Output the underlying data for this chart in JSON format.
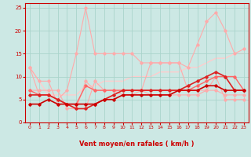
{
  "bg_color": "#cce8e4",
  "grid_color": "#aad4cc",
  "xlim": [
    -0.5,
    23.5
  ],
  "ylim": [
    0,
    26
  ],
  "yticks": [
    0,
    5,
    10,
    15,
    20,
    25
  ],
  "xticks": [
    0,
    1,
    2,
    3,
    4,
    5,
    6,
    7,
    8,
    9,
    10,
    11,
    12,
    13,
    14,
    15,
    16,
    17,
    18,
    19,
    20,
    21,
    22,
    23
  ],
  "xlabel": "Vent moyen/en rafales ( km/h )",
  "lines": [
    {
      "x": [
        0,
        1,
        2,
        3,
        4,
        5,
        6,
        7,
        8,
        9,
        10,
        11,
        12,
        13,
        14,
        15,
        16,
        17,
        18,
        19,
        20,
        21,
        22,
        23
      ],
      "y": [
        12,
        9,
        9,
        4,
        4,
        3,
        3,
        9,
        7,
        7,
        7,
        7,
        7,
        13,
        13,
        13,
        13,
        7,
        7,
        7,
        10,
        5,
        5,
        5
      ],
      "color": "#ffaaaa",
      "lw": 0.8,
      "marker": "D",
      "ms": 1.8
    },
    {
      "x": [
        0,
        1,
        2,
        3,
        4,
        5,
        6,
        7,
        8,
        9,
        10,
        11,
        12,
        13,
        14,
        15,
        16,
        17,
        18,
        19,
        20,
        21,
        22,
        23
      ],
      "y": [
        7,
        7,
        7,
        7,
        3,
        3,
        9,
        7,
        7,
        7,
        6,
        6,
        7,
        6,
        6,
        6,
        6,
        6,
        6,
        7,
        7,
        6,
        6,
        6
      ],
      "color": "#ffaaaa",
      "lw": 0.8,
      "marker": "D",
      "ms": 1.8
    },
    {
      "x": [
        0,
        2,
        5,
        6,
        7,
        8,
        9,
        10,
        11,
        12,
        13,
        14,
        15,
        16,
        17,
        18,
        19,
        20,
        21,
        22,
        23
      ],
      "y": [
        12,
        6,
        6,
        8,
        8,
        9,
        9,
        9,
        10,
        10,
        10,
        11,
        11,
        11,
        12,
        12,
        13,
        14,
        14,
        15,
        15
      ],
      "color": "#ffcccc",
      "lw": 1.0,
      "marker": null,
      "ms": 0
    },
    {
      "x": [
        0,
        1,
        2,
        3,
        4,
        5,
        6,
        7,
        8,
        9,
        10,
        11,
        12,
        13,
        14,
        15,
        16,
        17,
        18,
        19,
        20,
        21,
        22,
        23
      ],
      "y": [
        12,
        6,
        6,
        5,
        7,
        15,
        25,
        15,
        15,
        15,
        15,
        15,
        13,
        13,
        13,
        13,
        13,
        12,
        17,
        22,
        24,
        20,
        15,
        16
      ],
      "color": "#ffaaaa",
      "lw": 0.8,
      "marker": "D",
      "ms": 1.8
    },
    {
      "x": [
        0,
        1,
        2,
        3,
        4,
        5,
        6,
        7,
        8,
        9,
        10,
        11,
        12,
        13,
        14,
        15,
        16,
        17,
        18,
        19,
        20,
        21,
        22,
        23
      ],
      "y": [
        7,
        6,
        6,
        5,
        4,
        4,
        8,
        7,
        7,
        7,
        7,
        7,
        7,
        7,
        7,
        7,
        7,
        7,
        8,
        9,
        10,
        10,
        10,
        7
      ],
      "color": "#ff6666",
      "lw": 1.0,
      "marker": "D",
      "ms": 1.8
    },
    {
      "x": [
        0,
        1,
        2,
        3,
        4,
        5,
        6,
        7,
        8,
        9,
        10,
        11,
        12,
        13,
        14,
        15,
        16,
        17,
        18,
        19,
        20,
        21,
        22,
        23
      ],
      "y": [
        6,
        6,
        6,
        5,
        4,
        3,
        3,
        4,
        5,
        6,
        7,
        7,
        7,
        7,
        7,
        7,
        7,
        8,
        9,
        10,
        11,
        10,
        7,
        7
      ],
      "color": "#dd2222",
      "lw": 1.2,
      "marker": "D",
      "ms": 1.8
    },
    {
      "x": [
        0,
        1,
        2,
        3,
        4,
        5,
        6,
        7,
        8,
        9,
        10,
        11,
        12,
        13,
        14,
        15,
        16,
        17,
        18,
        19,
        20,
        21,
        22,
        23
      ],
      "y": [
        4,
        4,
        5,
        4,
        4,
        4,
        4,
        4,
        5,
        5,
        6,
        6,
        6,
        6,
        6,
        6,
        7,
        7,
        7,
        8,
        8,
        7,
        7,
        7
      ],
      "color": "#cc0000",
      "lw": 1.2,
      "marker": "D",
      "ms": 1.8
    }
  ],
  "wind_dirs": [
    "←",
    "↗",
    "↑",
    "←",
    "←",
    "↑",
    "↑",
    "↑",
    "←",
    "←",
    "←",
    "←",
    "←",
    "↓",
    "←",
    "←",
    "←",
    "↑",
    "←",
    "←",
    "←",
    "←",
    "←",
    "←"
  ]
}
